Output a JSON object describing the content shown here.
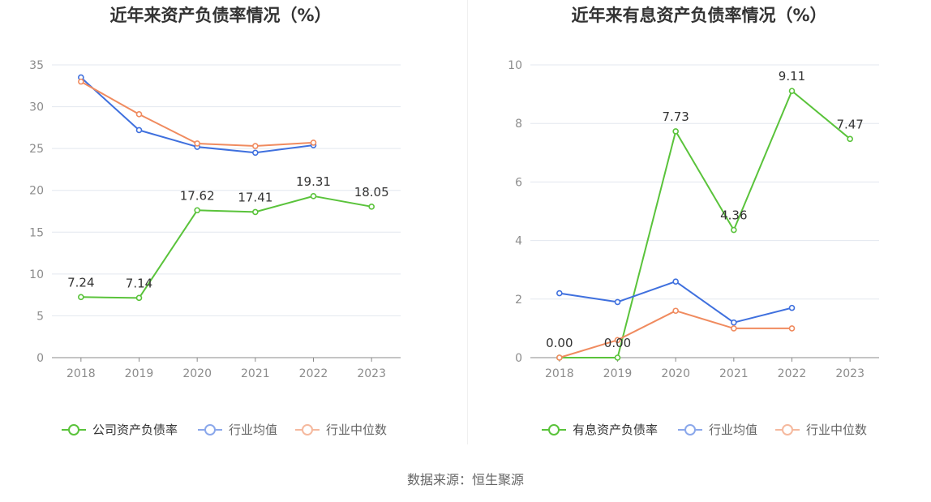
{
  "chart_data": [
    {
      "type": "line",
      "title": "近年来资产负债率情况（%）",
      "categories": [
        "2018",
        "2019",
        "2020",
        "2021",
        "2022",
        "2023"
      ],
      "ylim": [
        0,
        35
      ],
      "yticks": [
        0,
        5,
        10,
        15,
        20,
        25,
        30,
        35
      ],
      "grid": true,
      "legend": "bottom",
      "series": [
        {
          "name": "公司资产负债率",
          "color": "#5ac33b",
          "values": [
            7.24,
            7.14,
            17.62,
            17.41,
            19.31,
            18.05
          ],
          "data_labels": true
        },
        {
          "name": "行业均值",
          "color": "#3f70de",
          "values": [
            33.5,
            27.2,
            25.2,
            24.5,
            25.4,
            null
          ],
          "data_labels": false
        },
        {
          "name": "行业中位数",
          "color": "#f08b5f",
          "values": [
            33.0,
            29.1,
            25.6,
            25.3,
            25.7,
            null
          ],
          "data_labels": false
        }
      ]
    },
    {
      "type": "line",
      "title": "近年来有息资产负债率情况（%）",
      "categories": [
        "2018",
        "2019",
        "2020",
        "2021",
        "2022",
        "2023"
      ],
      "ylim": [
        0,
        10
      ],
      "yticks": [
        0,
        2,
        4,
        6,
        8,
        10
      ],
      "grid": true,
      "legend": "bottom",
      "series": [
        {
          "name": "有息资产负债率",
          "color": "#5ac33b",
          "values": [
            0.0,
            0.0,
            7.73,
            4.36,
            9.11,
            7.47
          ],
          "data_labels": true
        },
        {
          "name": "行业均值",
          "color": "#3f70de",
          "values": [
            2.2,
            1.9,
            2.6,
            1.2,
            1.7,
            null
          ],
          "data_labels": false
        },
        {
          "name": "行业中位数",
          "color": "#f08b5f",
          "values": [
            0.0,
            0.6,
            1.6,
            1.0,
            1.0,
            null
          ],
          "data_labels": false
        }
      ]
    }
  ],
  "source": "数据来源：恒生聚源"
}
